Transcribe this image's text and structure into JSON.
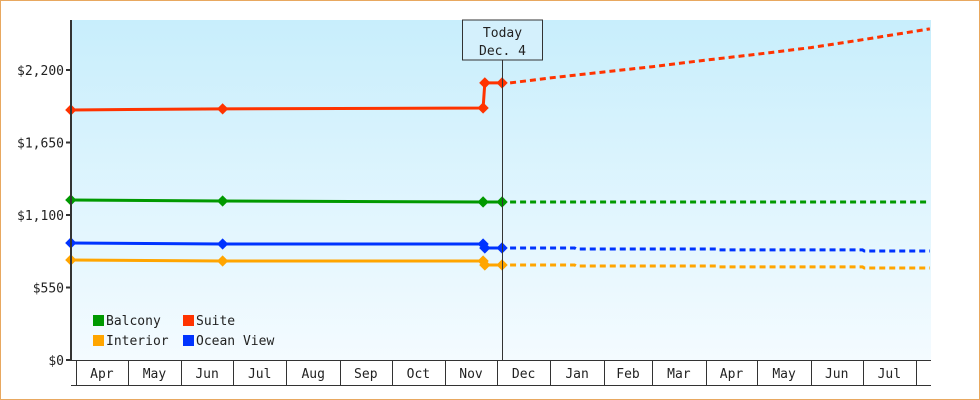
{
  "chart_data": {
    "type": "line",
    "title": "",
    "xlabel": "",
    "ylabel": "",
    "ylim": [
      0,
      2579
    ],
    "y_ticks": [
      "$0",
      "$550",
      "$1,100",
      "$1,650",
      "$2,200"
    ],
    "y_tick_values": [
      0,
      550,
      1100,
      1650,
      2200
    ],
    "x_ticks": [
      "Apr",
      "May",
      "Jun",
      "Jul",
      "Aug",
      "Sep",
      "Oct",
      "Nov",
      "Dec",
      "Jan",
      "Feb",
      "Mar",
      "Apr",
      "May",
      "Jun",
      "Jul"
    ],
    "x_range": [
      "Mar 29",
      "Aug 9"
    ],
    "today": {
      "line1": "Today",
      "line2": "Dec. 4",
      "date": "Dec 4"
    },
    "background_gradient": [
      "#c8eefc",
      "#f4fbff"
    ],
    "legend_position": "bottom-left",
    "series": [
      {
        "name": "Balcony",
        "color": "#009900",
        "history": [
          [
            "Mar 29",
            1214
          ],
          [
            "Jun 25",
            1206
          ],
          [
            "Nov 23",
            1199
          ],
          [
            "Dec 4",
            1199
          ]
        ],
        "forecast": [
          [
            "Dec 4",
            1199
          ],
          [
            "Aug 9",
            1199
          ]
        ]
      },
      {
        "name": "Suite",
        "color": "#ff3300",
        "history": [
          [
            "Mar 29",
            1897
          ],
          [
            "Jun 25",
            1905
          ],
          [
            "Nov 23",
            1912
          ],
          [
            "Nov 24",
            2102
          ],
          [
            "Dec 4",
            2102
          ]
        ],
        "forecast": [
          [
            "Dec 4",
            2102
          ],
          [
            "Jan 1",
            2140
          ],
          [
            "Feb 1",
            2185
          ],
          [
            "Mar 1",
            2225
          ],
          [
            "Apr 1",
            2275
          ],
          [
            "May 1",
            2320
          ],
          [
            "Jun 1",
            2370
          ],
          [
            "Jul 1",
            2430
          ],
          [
            "Aug 9",
            2512
          ]
        ]
      },
      {
        "name": "Interior",
        "color": "#ffa500",
        "history": [
          [
            "Mar 29",
            759
          ],
          [
            "Jun 25",
            751
          ],
          [
            "Nov 23",
            751
          ],
          [
            "Nov 24",
            721
          ],
          [
            "Dec 4",
            721
          ]
        ],
        "forecast": [
          [
            "Dec 4",
            721
          ],
          [
            "Jan 15",
            721
          ],
          [
            "Jan 16",
            713
          ],
          [
            "Apr 7",
            713
          ],
          [
            "Apr 8",
            706
          ],
          [
            "Jul 1",
            706
          ],
          [
            "Jul 2",
            698
          ],
          [
            "Aug 9",
            698
          ]
        ]
      },
      {
        "name": "Ocean View",
        "color": "#0033ff",
        "history": [
          [
            "Mar 29",
            888
          ],
          [
            "Jun 25",
            880
          ],
          [
            "Nov 23",
            880
          ],
          [
            "Nov 24",
            850
          ],
          [
            "Dec 4",
            850
          ]
        ],
        "forecast": [
          [
            "Dec 4",
            850
          ],
          [
            "Jan 15",
            850
          ],
          [
            "Jan 16",
            842
          ],
          [
            "Apr 7",
            842
          ],
          [
            "Apr 8",
            835
          ],
          [
            "Jul 1",
            835
          ],
          [
            "Jul 2",
            827
          ],
          [
            "Aug 9",
            827
          ]
        ]
      }
    ]
  }
}
